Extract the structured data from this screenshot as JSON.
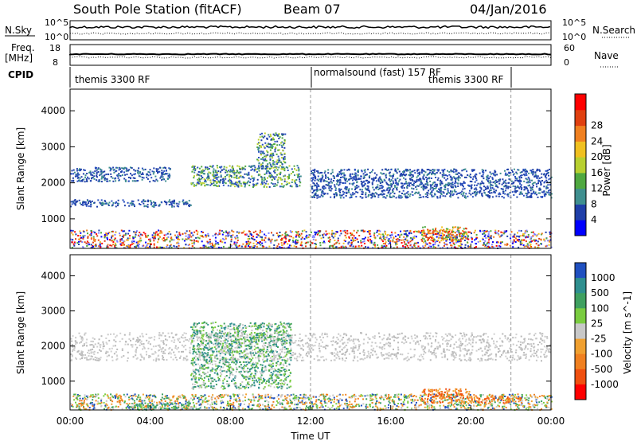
{
  "header": {
    "station": "South Pole Station (fitACF)",
    "beam": "Beam 07",
    "date": "04/Jan/2016"
  },
  "summary_panel": {
    "nsky_label": "N.Sky",
    "nsearch_label": "N.Search",
    "nsky_ticks": [
      "10^5",
      "10^0"
    ],
    "freq_label": [
      "Freq.",
      "[MHz]"
    ],
    "freq_ticks": [
      "18",
      "8"
    ],
    "nave_label": "Nave",
    "nave_ticks": [
      "60",
      "0"
    ],
    "cpid_label": "CPID",
    "cpid_segments": [
      {
        "text": "themis 3300 RF"
      },
      {
        "text": "normalsound (fast) 157 RF"
      },
      {
        "text": "themis 3300 RF"
      }
    ]
  },
  "chart_data": [
    {
      "type": "heatmap",
      "panel": "power",
      "ylabel": "Slant Range [km]",
      "y_ticks": [
        "1000",
        "2000",
        "3000",
        "4000"
      ],
      "ylim": [
        180,
        4600
      ],
      "x_ticks": [
        "00:00",
        "04:00",
        "08:00",
        "12:00",
        "16:00",
        "20:00",
        "00:00"
      ],
      "xlim_hours": [
        0,
        24
      ],
      "colorbar": {
        "label": "Power [dB]",
        "ticks": [
          "4",
          "8",
          "12",
          "16",
          "20",
          "24",
          "28"
        ],
        "colors": [
          "#0000ff",
          "#1f3fa8",
          "#3f8f8f",
          "#4fa840",
          "#b8d030",
          "#f0c020",
          "#f08020",
          "#e04010",
          "#ff0000"
        ]
      },
      "mode_change_hours": [
        12.0,
        22.0
      ],
      "scatter_regions": [
        {
          "t_start": 0.0,
          "t_end": 24.0,
          "r_start": 200,
          "r_end": 700,
          "level": "mixed"
        },
        {
          "t_start": 0.0,
          "t_end": 6.0,
          "r_start": 1350,
          "r_end": 1550,
          "level": "low"
        },
        {
          "t_start": 0.0,
          "t_end": 5.0,
          "r_start": 2050,
          "r_end": 2450,
          "level": "low"
        },
        {
          "t_start": 6.0,
          "t_end": 11.5,
          "r_start": 1900,
          "r_end": 2500,
          "level": "mid"
        },
        {
          "t_start": 9.3,
          "t_end": 10.7,
          "r_start": 2400,
          "r_end": 3400,
          "level": "mid"
        },
        {
          "t_start": 12.0,
          "t_end": 24.0,
          "r_start": 1600,
          "r_end": 2400,
          "level": "low"
        },
        {
          "t_start": 17.5,
          "t_end": 19.8,
          "r_start": 400,
          "r_end": 800,
          "level": "high"
        }
      ]
    },
    {
      "type": "heatmap",
      "panel": "velocity",
      "ylabel": "Slant Range [km]",
      "y_ticks": [
        "1000",
        "2000",
        "3000",
        "4000"
      ],
      "ylim": [
        180,
        4600
      ],
      "x_ticks": [
        "00:00",
        "04:00",
        "08:00",
        "12:00",
        "16:00",
        "20:00",
        "00:00"
      ],
      "xlabel": "Time UT",
      "xlim_hours": [
        0,
        24
      ],
      "colorbar": {
        "label": "Velocity [m s^-1]",
        "ticks": [
          "1000",
          "500",
          "100",
          "25",
          "-25",
          "-100",
          "-500",
          "-1000"
        ],
        "colors": [
          "#2050c0",
          "#2f8f8f",
          "#3fa060",
          "#7acc40",
          "#c8c8c8",
          "#f0a030",
          "#f08020",
          "#f05010",
          "#ff0000"
        ]
      },
      "mode_change_hours": [
        12.0,
        22.0
      ],
      "scatter_regions": [
        {
          "t_start": 0.0,
          "t_end": 24.0,
          "r_start": 200,
          "r_end": 650,
          "level": "mixed"
        },
        {
          "t_start": 3.0,
          "t_end": 6.5,
          "r_start": 200,
          "r_end": 400,
          "level": "green"
        },
        {
          "t_start": 0.0,
          "t_end": 24.0,
          "r_start": 1600,
          "r_end": 2400,
          "level": "gray"
        },
        {
          "t_start": 6.0,
          "t_end": 11.0,
          "r_start": 800,
          "r_end": 2700,
          "level": "green"
        },
        {
          "t_start": 17.5,
          "t_end": 20.0,
          "r_start": 400,
          "r_end": 800,
          "level": "orange"
        },
        {
          "t_start": 20.0,
          "t_end": 22.5,
          "r_start": 400,
          "r_end": 600,
          "level": "orange"
        }
      ]
    }
  ]
}
